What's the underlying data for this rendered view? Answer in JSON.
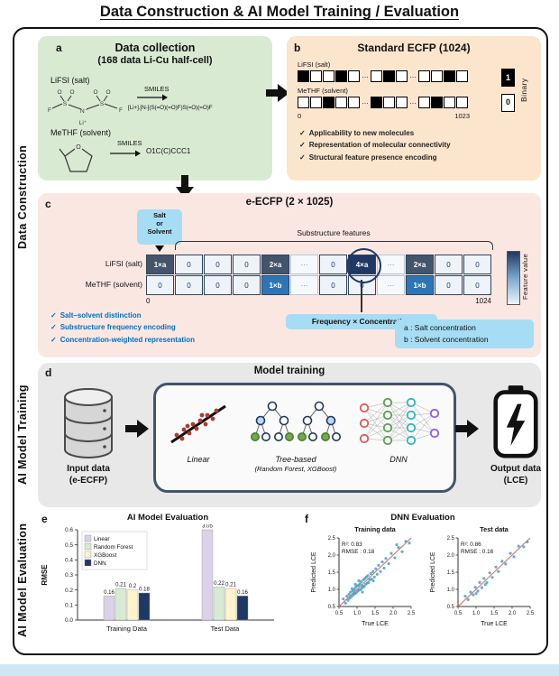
{
  "title": "Data Construction & AI Model Training / Evaluation",
  "icons": {
    "check": "✓",
    "arrow_right": "black-right-arrow",
    "arrow_down": "black-down-arrow",
    "database": "cylinder-database",
    "battery": "battery-with-lightning-bolt"
  },
  "colors": {
    "panel_a_bg": "#d9ead3",
    "panel_b_bg": "#fce5cd",
    "panel_c_bg": "#fbe7e2",
    "panel_d_bg": "#e8e8e8",
    "accent_blue_box": "#a6ddf4",
    "check_blue": "#0070c0",
    "salt_cell": "#44546a",
    "salt_cell_highlight": "#1f3864",
    "solvent_cell": "#2e75b6",
    "bar_linear": "#d9d2e9",
    "bar_random_forest": "#d9ead3",
    "bar_xgboost": "#fff2cc",
    "bar_dnn": "#1f3864",
    "identity_line": "#e06666",
    "scatter_point": "#3a9fc0"
  },
  "sidebar": {
    "data_construction": "Data Construction",
    "ai_model_training": "AI Model Training",
    "ai_model_evaluation": "AI Model Evaluation"
  },
  "panel_a": {
    "tag": "a",
    "title": "Data collection",
    "subtitle": "(168 data Li-Cu half-cell)",
    "lifsi_label": "LiFSI (salt)",
    "lifsi_smiles_label": "SMILES",
    "lifsi_smiles": "[Li+].[N-](S(=O)(=O)F)S(=O)(=O)F",
    "methf_label": "MeTHF (solvent)",
    "methf_smiles_label": "SMILES",
    "methf_smiles": "O1C(C)CCC1"
  },
  "panel_b": {
    "tag": "b",
    "title": "Standard ECFP (1024)",
    "row1_label": "LiFSI (salt)",
    "row1_cells": [
      1,
      0,
      0,
      1,
      0,
      "…",
      0,
      1,
      0,
      "…",
      0,
      0,
      1,
      0
    ],
    "row2_label": "MeTHF (solvent)",
    "row2_cells": [
      0,
      0,
      1,
      0,
      0,
      "…",
      1,
      0,
      0,
      "…",
      0,
      1,
      0,
      0
    ],
    "axis_start": "0",
    "axis_end": "1023",
    "binary_one": "1",
    "binary_zero": "0",
    "binary_label": "Binary",
    "checks": [
      "Applicability to new molecules",
      "Representation of molecular connectivity",
      "Structural feature presence encoding"
    ]
  },
  "panel_c": {
    "tag": "c",
    "title": "e-ECFP (2 × 1025)",
    "salt_or_solvent": [
      "Salt",
      "or",
      "Solvent"
    ],
    "substructure_label": "Substructure features",
    "row1_label": "LiFSI (salt)",
    "row1_cells": [
      "1×a",
      "0",
      "0",
      "0",
      "2×a",
      "⋯",
      "0",
      "4×a",
      "⋯",
      "2×a",
      "0",
      "0"
    ],
    "row2_label": "MeTHF (solvent)",
    "row2_cells": [
      "0",
      "0",
      "0",
      "0",
      "1×b",
      "⋯",
      "0",
      "0",
      "⋯",
      "1×b",
      "0",
      "0"
    ],
    "axis_start": "0",
    "axis_end": "1024",
    "colorbar_label": "Feature value",
    "freq_label": "Frequency × Concentration",
    "checks": [
      "Salt–solvent distinction",
      "Substructure frequency encoding",
      "Concentration-weighted representation"
    ],
    "legend_a": "a : Salt concentration",
    "legend_b": "b : Solvent concentration"
  },
  "panel_d": {
    "tag": "d",
    "title": "Model training",
    "input_title": "Input data",
    "input_sub": "(e-ECFP)",
    "model_linear": "Linear",
    "model_tree": "Tree-based",
    "model_tree_sub": "(Random Forest, XGBoost)",
    "model_dnn": "DNN",
    "output_title": "Output data",
    "output_sub": "(LCE)"
  },
  "chart_data": [
    {
      "id": "rmse_bars",
      "type": "bar",
      "panel_tag": "e",
      "title": "AI Model Evaluation",
      "ylabel": "RMSE",
      "ylim": [
        0,
        0.6
      ],
      "yticks": [
        0.0,
        0.1,
        0.2,
        0.3,
        0.4,
        0.5,
        0.6
      ],
      "categories": [
        "Training Data",
        "Test Data"
      ],
      "series": [
        {
          "name": "Linear",
          "color": "#d9d2e9",
          "values": [
            0.16,
            3.05
          ]
        },
        {
          "name": "Random Forest",
          "color": "#d9ead3",
          "values": [
            0.21,
            0.22
          ]
        },
        {
          "name": "XGBoost",
          "color": "#fff2cc",
          "values": [
            0.2,
            0.21
          ]
        },
        {
          "name": "DNN",
          "color": "#1f3864",
          "values": [
            0.18,
            0.16
          ]
        }
      ],
      "legend_position": "upper-left",
      "note": "Linear bar for Test Data (3.05) is clipped at the top of the axis"
    },
    {
      "id": "dnn_train",
      "type": "scatter",
      "panel_tag": "f",
      "panel_title": "DNN Evaluation",
      "title": "Training data",
      "xlabel": "True LCE",
      "ylabel": "Predicted LCE",
      "xlim": [
        0.5,
        2.5
      ],
      "ylim": [
        0.5,
        2.5
      ],
      "ticks": [
        0.5,
        1.0,
        1.5,
        2.0,
        2.5
      ],
      "annotations": [
        "R²: 0.83",
        "RMSE : 0.18"
      ],
      "identity_line": true,
      "points": [
        [
          0.62,
          0.72
        ],
        [
          0.68,
          0.6
        ],
        [
          0.72,
          0.8
        ],
        [
          0.75,
          0.68
        ],
        [
          0.78,
          0.86
        ],
        [
          0.8,
          0.74
        ],
        [
          0.82,
          0.92
        ],
        [
          0.85,
          0.79
        ],
        [
          0.86,
          1.02
        ],
        [
          0.88,
          0.95
        ],
        [
          0.9,
          0.84
        ],
        [
          0.92,
          1.0
        ],
        [
          0.94,
          0.88
        ],
        [
          0.96,
          1.06
        ],
        [
          0.98,
          0.9
        ],
        [
          1.0,
          1.1
        ],
        [
          1.02,
          0.95
        ],
        [
          1.04,
          1.12
        ],
        [
          1.06,
          0.98
        ],
        [
          1.08,
          1.16
        ],
        [
          1.1,
          1.0
        ],
        [
          1.12,
          1.22
        ],
        [
          1.14,
          1.05
        ],
        [
          1.16,
          1.1
        ],
        [
          1.18,
          1.28
        ],
        [
          1.2,
          1.08
        ],
        [
          1.22,
          1.32
        ],
        [
          1.24,
          1.15
        ],
        [
          1.26,
          1.36
        ],
        [
          1.28,
          1.18
        ],
        [
          1.3,
          1.4
        ],
        [
          1.32,
          1.2
        ],
        [
          1.35,
          1.28
        ],
        [
          1.38,
          1.46
        ],
        [
          1.4,
          1.3
        ],
        [
          1.44,
          1.52
        ],
        [
          1.48,
          1.36
        ],
        [
          1.52,
          1.6
        ],
        [
          1.56,
          1.44
        ],
        [
          1.6,
          1.7
        ],
        [
          1.65,
          1.52
        ],
        [
          1.7,
          1.8
        ],
        [
          1.75,
          1.62
        ],
        [
          1.8,
          1.9
        ],
        [
          1.88,
          1.75
        ],
        [
          1.95,
          2.05
        ],
        [
          2.05,
          1.92
        ],
        [
          2.15,
          2.22
        ],
        [
          2.25,
          2.1
        ],
        [
          2.35,
          2.4
        ],
        [
          2.45,
          2.35
        ],
        [
          1.05,
          1.25
        ],
        [
          0.95,
          1.15
        ],
        [
          1.45,
          1.25
        ],
        [
          1.15,
          0.92
        ],
        [
          2.1,
          2.3
        ]
      ]
    },
    {
      "id": "dnn_test",
      "type": "scatter",
      "panel_tag": "f",
      "title": "Test data",
      "xlabel": "True LCE",
      "ylabel": "Predicted LCE",
      "xlim": [
        0.5,
        2.5
      ],
      "ylim": [
        0.5,
        2.5
      ],
      "ticks": [
        0.5,
        1.0,
        1.5,
        2.0,
        2.5
      ],
      "annotations": [
        "R²: 0.86",
        "RMSE : 0.16"
      ],
      "identity_line": true,
      "points": [
        [
          0.7,
          0.8
        ],
        [
          0.78,
          0.7
        ],
        [
          0.85,
          0.92
        ],
        [
          0.92,
          0.84
        ],
        [
          0.98,
          1.06
        ],
        [
          1.05,
          0.95
        ],
        [
          1.1,
          1.2
        ],
        [
          1.16,
          1.05
        ],
        [
          1.22,
          1.32
        ],
        [
          1.3,
          1.2
        ],
        [
          1.38,
          1.48
        ],
        [
          1.45,
          1.35
        ],
        [
          1.55,
          1.65
        ],
        [
          1.62,
          1.52
        ],
        [
          1.72,
          1.82
        ],
        [
          1.82,
          1.74
        ],
        [
          1.95,
          2.05
        ],
        [
          2.05,
          1.95
        ],
        [
          2.18,
          2.26
        ],
        [
          2.32,
          2.24
        ],
        [
          2.42,
          2.38
        ],
        [
          1.0,
          0.88
        ],
        [
          1.26,
          1.14
        ]
      ]
    }
  ]
}
